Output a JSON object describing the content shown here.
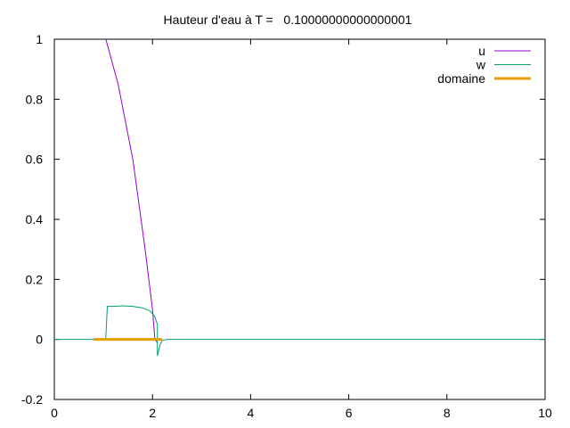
{
  "chart_data": {
    "type": "line",
    "title": "Hauteur d'eau à T =   0.10000000000000001",
    "xlabel": "",
    "ylabel": "",
    "xlim": [
      0,
      10
    ],
    "ylim": [
      -0.2,
      1
    ],
    "x_ticks": [
      0,
      2,
      4,
      6,
      8,
      10
    ],
    "y_ticks": [
      -0.2,
      0,
      0.2,
      0.4,
      0.6,
      0.8,
      1
    ],
    "x_tick_labels": [
      "0",
      "2",
      "4",
      "6",
      "8",
      "10"
    ],
    "y_tick_labels": [
      "-0.2",
      "0",
      "0.2",
      "0.4",
      "0.6",
      "0.8",
      "1"
    ],
    "grid": false,
    "legend_position": "top-right",
    "series": [
      {
        "name": "u",
        "color": "#9400d3",
        "points": [
          [
            1.05,
            1.0
          ],
          [
            1.3,
            0.85
          ],
          [
            1.6,
            0.6
          ],
          [
            1.85,
            0.3
          ],
          [
            2.0,
            0.1
          ],
          [
            2.05,
            0.0
          ],
          [
            2.1,
            -0.01
          ]
        ]
      },
      {
        "name": "w",
        "color": "#009e73",
        "points": [
          [
            0,
            0
          ],
          [
            1.05,
            0
          ],
          [
            1.05,
            0.01
          ],
          [
            1.08,
            0.11
          ],
          [
            1.2,
            0.11
          ],
          [
            1.4,
            0.112
          ],
          [
            1.6,
            0.11
          ],
          [
            1.8,
            0.105
          ],
          [
            1.95,
            0.095
          ],
          [
            2.05,
            0.075
          ],
          [
            2.1,
            0.05
          ],
          [
            2.1,
            -0.055
          ],
          [
            2.15,
            -0.02
          ],
          [
            2.2,
            -0.003
          ],
          [
            2.3,
            0
          ],
          [
            10,
            0
          ]
        ]
      },
      {
        "name": "domaine",
        "color": "#e69f00",
        "points": [
          [
            0.8,
            0
          ],
          [
            2.2,
            0
          ]
        ]
      }
    ]
  }
}
